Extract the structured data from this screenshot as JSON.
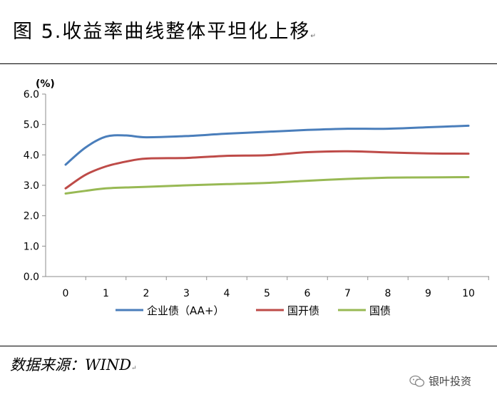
{
  "figure": {
    "title": "图 5.收益率曲线整体平坦化上移",
    "title_mark": "↵",
    "source": "数据来源：WIND",
    "source_mark": "↵",
    "watermark": "银叶投资"
  },
  "chart_data": {
    "type": "line",
    "title": "",
    "xlabel": "",
    "ylabel": "(%)",
    "ylim": [
      0,
      6
    ],
    "yticks": [
      "0.0",
      "1.0",
      "2.0",
      "3.0",
      "4.0",
      "5.0",
      "6.0"
    ],
    "xlim": [
      0,
      10
    ],
    "categories": [
      "0",
      "1",
      "2",
      "3",
      "4",
      "5",
      "6",
      "7",
      "8",
      "9",
      "10"
    ],
    "x": [
      0,
      0.5,
      1,
      1.5,
      2,
      3,
      4,
      5,
      6,
      7,
      8,
      9,
      10
    ],
    "grid": false,
    "legend": "bottom",
    "series": [
      {
        "name": "企业债（AA+）",
        "color": "#4a7ebb",
        "values": [
          3.68,
          4.25,
          4.6,
          4.64,
          4.58,
          4.62,
          4.7,
          4.76,
          4.82,
          4.86,
          4.86,
          4.91,
          4.96
        ]
      },
      {
        "name": "国开债",
        "color": "#be4b48",
        "values": [
          2.9,
          3.35,
          3.62,
          3.78,
          3.88,
          3.9,
          3.97,
          3.99,
          4.09,
          4.12,
          4.08,
          4.05,
          4.04
        ]
      },
      {
        "name": "国债",
        "color": "#98b954",
        "values": [
          2.73,
          2.82,
          2.9,
          2.93,
          2.95,
          3.0,
          3.04,
          3.08,
          3.15,
          3.21,
          3.25,
          3.26,
          3.27
        ]
      }
    ]
  }
}
